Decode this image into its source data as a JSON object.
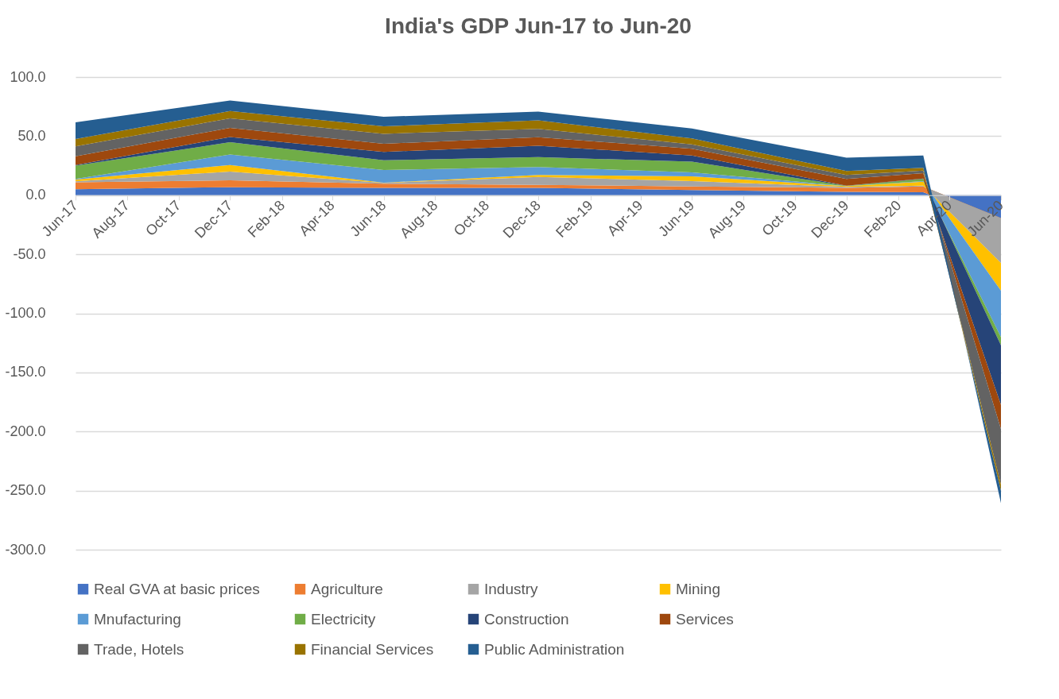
{
  "chart_data": {
    "type": "area",
    "title": "India's GDP Jun-17 to Jun-20",
    "stacked": true,
    "grid": "y",
    "legend": "bottom",
    "x": [
      "2017-06",
      "2017-12",
      "2018-06",
      "2018-12",
      "2019-06",
      "2019-12",
      "2020-03",
      "2020-06"
    ],
    "xlim": [
      "2017-06",
      "2020-06"
    ],
    "xticks": [
      {
        "value": "2017-06",
        "label": "Jun-17"
      },
      {
        "value": "2017-08",
        "label": "Aug-17"
      },
      {
        "value": "2017-10",
        "label": "Oct-17"
      },
      {
        "value": "2017-12",
        "label": "Dec-17"
      },
      {
        "value": "2018-02",
        "label": "Feb-18"
      },
      {
        "value": "2018-04",
        "label": "Apr-18"
      },
      {
        "value": "2018-06",
        "label": "Jun-18"
      },
      {
        "value": "2018-08",
        "label": "Aug-18"
      },
      {
        "value": "2018-10",
        "label": "Oct-18"
      },
      {
        "value": "2018-12",
        "label": "Dec-18"
      },
      {
        "value": "2019-02",
        "label": "Feb-19"
      },
      {
        "value": "2019-04",
        "label": "Apr-19"
      },
      {
        "value": "2019-06",
        "label": "Jun-19"
      },
      {
        "value": "2019-08",
        "label": "Aug-19"
      },
      {
        "value": "2019-10",
        "label": "Oct-19"
      },
      {
        "value": "2019-12",
        "label": "Dec-19"
      },
      {
        "value": "2020-02",
        "label": "Feb-20"
      },
      {
        "value": "2020-04",
        "label": "Apr-20"
      },
      {
        "value": "2020-06",
        "label": "Jun-20"
      }
    ],
    "ylim": [
      -300,
      100
    ],
    "yticks": [
      {
        "value": -300,
        "label": "-300.0"
      },
      {
        "value": -250,
        "label": "-250.0"
      },
      {
        "value": -200,
        "label": "-200.0"
      },
      {
        "value": -150,
        "label": "-150.0"
      },
      {
        "value": -100,
        "label": "-100.0"
      },
      {
        "value": -50,
        "label": "-50.0"
      },
      {
        "value": 0,
        "label": "0.0"
      },
      {
        "value": 50,
        "label": "50.0"
      },
      {
        "value": 100,
        "label": "100.0"
      }
    ],
    "series": [
      {
        "name": "Real GVA at basic prices",
        "color": "#4472c4",
        "values": [
          5.0,
          6.8,
          6.3,
          6.3,
          4.3,
          2.9,
          2.5,
          -22.8
        ]
      },
      {
        "name": "Agriculture",
        "color": "#ed7d31",
        "values": [
          6.0,
          5.8,
          3.4,
          2.5,
          3.1,
          3.4,
          4.9,
          3.4
        ]
      },
      {
        "name": "Industry",
        "color": "#a5a5a5",
        "values": [
          0.7,
          7.4,
          0.7,
          6.7,
          4.5,
          0.7,
          0.7,
          -38.1
        ]
      },
      {
        "name": "Mining",
        "color": "#ffc000",
        "values": [
          1.6,
          5.5,
          0.2,
          1.6,
          4.1,
          0.7,
          3.4,
          -23.3
        ]
      },
      {
        "name": "Mnufacturing",
        "color": "#5b9bd5",
        "values": [
          0.4,
          9.0,
          10.8,
          6.8,
          3.4,
          0.0,
          0.4,
          -39.3
        ]
      },
      {
        "name": "Electricity",
        "color": "#70ad47",
        "values": [
          11.3,
          10.3,
          8.1,
          8.3,
          9.0,
          0.2,
          1.8,
          -7.0
        ]
      },
      {
        "name": "Construction",
        "color": "#264478",
        "values": [
          0.5,
          4.5,
          7.2,
          9.7,
          5.2,
          0.2,
          0.5,
          -50.3
        ]
      },
      {
        "name": "Services",
        "color": "#9e480e",
        "values": [
          7.4,
          7.7,
          6.8,
          7.2,
          5.8,
          5.6,
          4.5,
          -20.6
        ]
      },
      {
        "name": "Trade, Hotels",
        "color": "#636363",
        "values": [
          8.5,
          8.1,
          8.5,
          7.0,
          3.6,
          3.4,
          2.2,
          -47.0
        ]
      },
      {
        "name": "Financial Services",
        "color": "#997300",
        "values": [
          6.1,
          6.1,
          6.3,
          7.2,
          5.0,
          3.4,
          2.3,
          -5.3
        ]
      },
      {
        "name": "Public Administration",
        "color": "#255e91",
        "values": [
          14.2,
          9.0,
          8.1,
          7.4,
          8.5,
          11.3,
          10.4,
          -10.3
        ]
      }
    ]
  }
}
